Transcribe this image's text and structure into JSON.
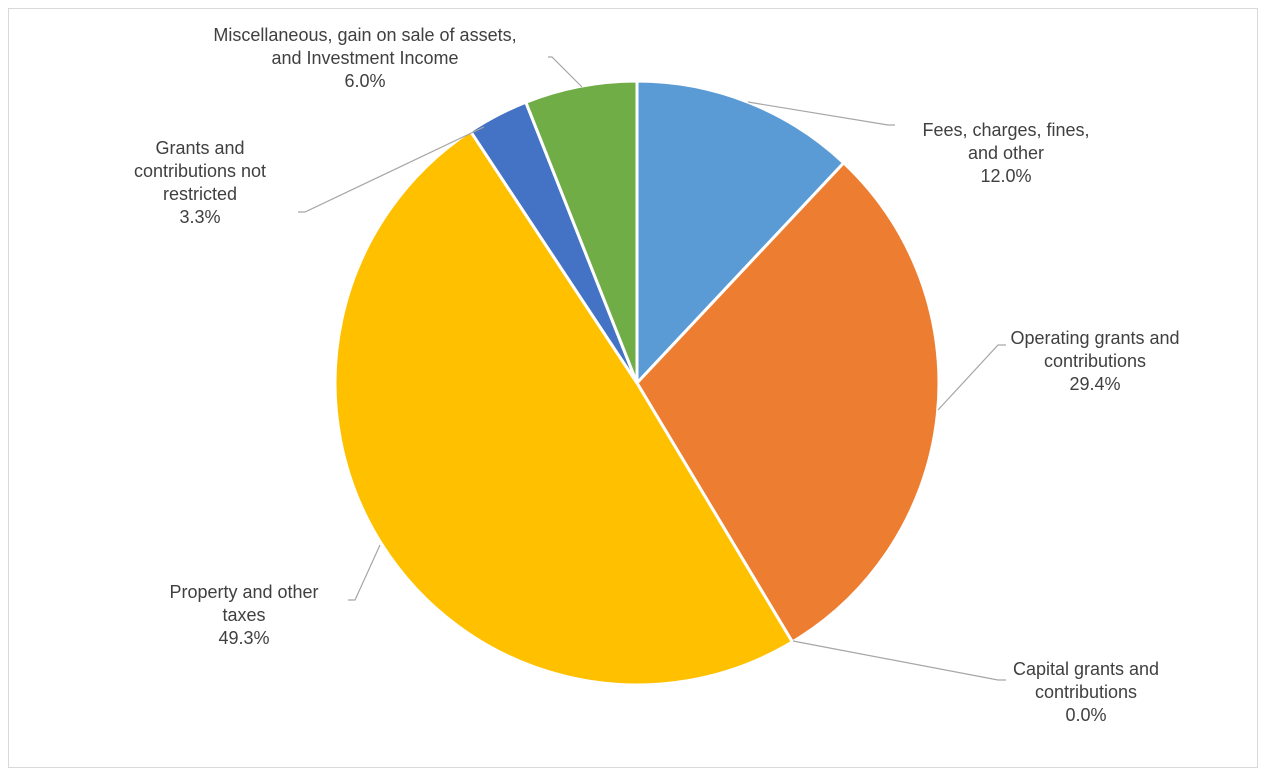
{
  "chart_data": {
    "type": "pie",
    "start_angle_deg": 0,
    "direction": "clockwise",
    "slices": [
      {
        "name": "Fees, charges, fines, and other",
        "value": 12.0,
        "label": "12.0%",
        "color": "#5b9bd5",
        "label_lines": [
          "Fees, charges, fines,",
          "and other"
        ]
      },
      {
        "name": "Operating grants and contributions",
        "value": 29.4,
        "label": "29.4%",
        "color": "#ed7d31",
        "label_lines": [
          "Operating grants and",
          "contributions"
        ]
      },
      {
        "name": "Capital grants and contributions",
        "value": 0.0,
        "label": "0.0%",
        "color": "#a5a5a5",
        "label_lines": [
          "Capital grants and",
          "contributions"
        ]
      },
      {
        "name": "Property and other taxes",
        "value": 49.3,
        "label": "49.3%",
        "color": "#ffc000",
        "label_lines": [
          "Property and other",
          "taxes"
        ]
      },
      {
        "name": "Grants and contributions not restricted",
        "value": 3.3,
        "label": "3.3%",
        "color": "#4472c4",
        "label_lines": [
          "Grants and",
          "contributions not",
          "restricted"
        ]
      },
      {
        "name": "Miscellaneous, gain on sale of assets, and Investment Income",
        "value": 6.0,
        "label": "6.0%",
        "color": "#70ad47",
        "label_lines": [
          "Miscellaneous, gain on sale of assets,",
          "and Investment Income"
        ]
      }
    ],
    "legend": "none",
    "data_labels": "outside-with-leader-lines"
  }
}
